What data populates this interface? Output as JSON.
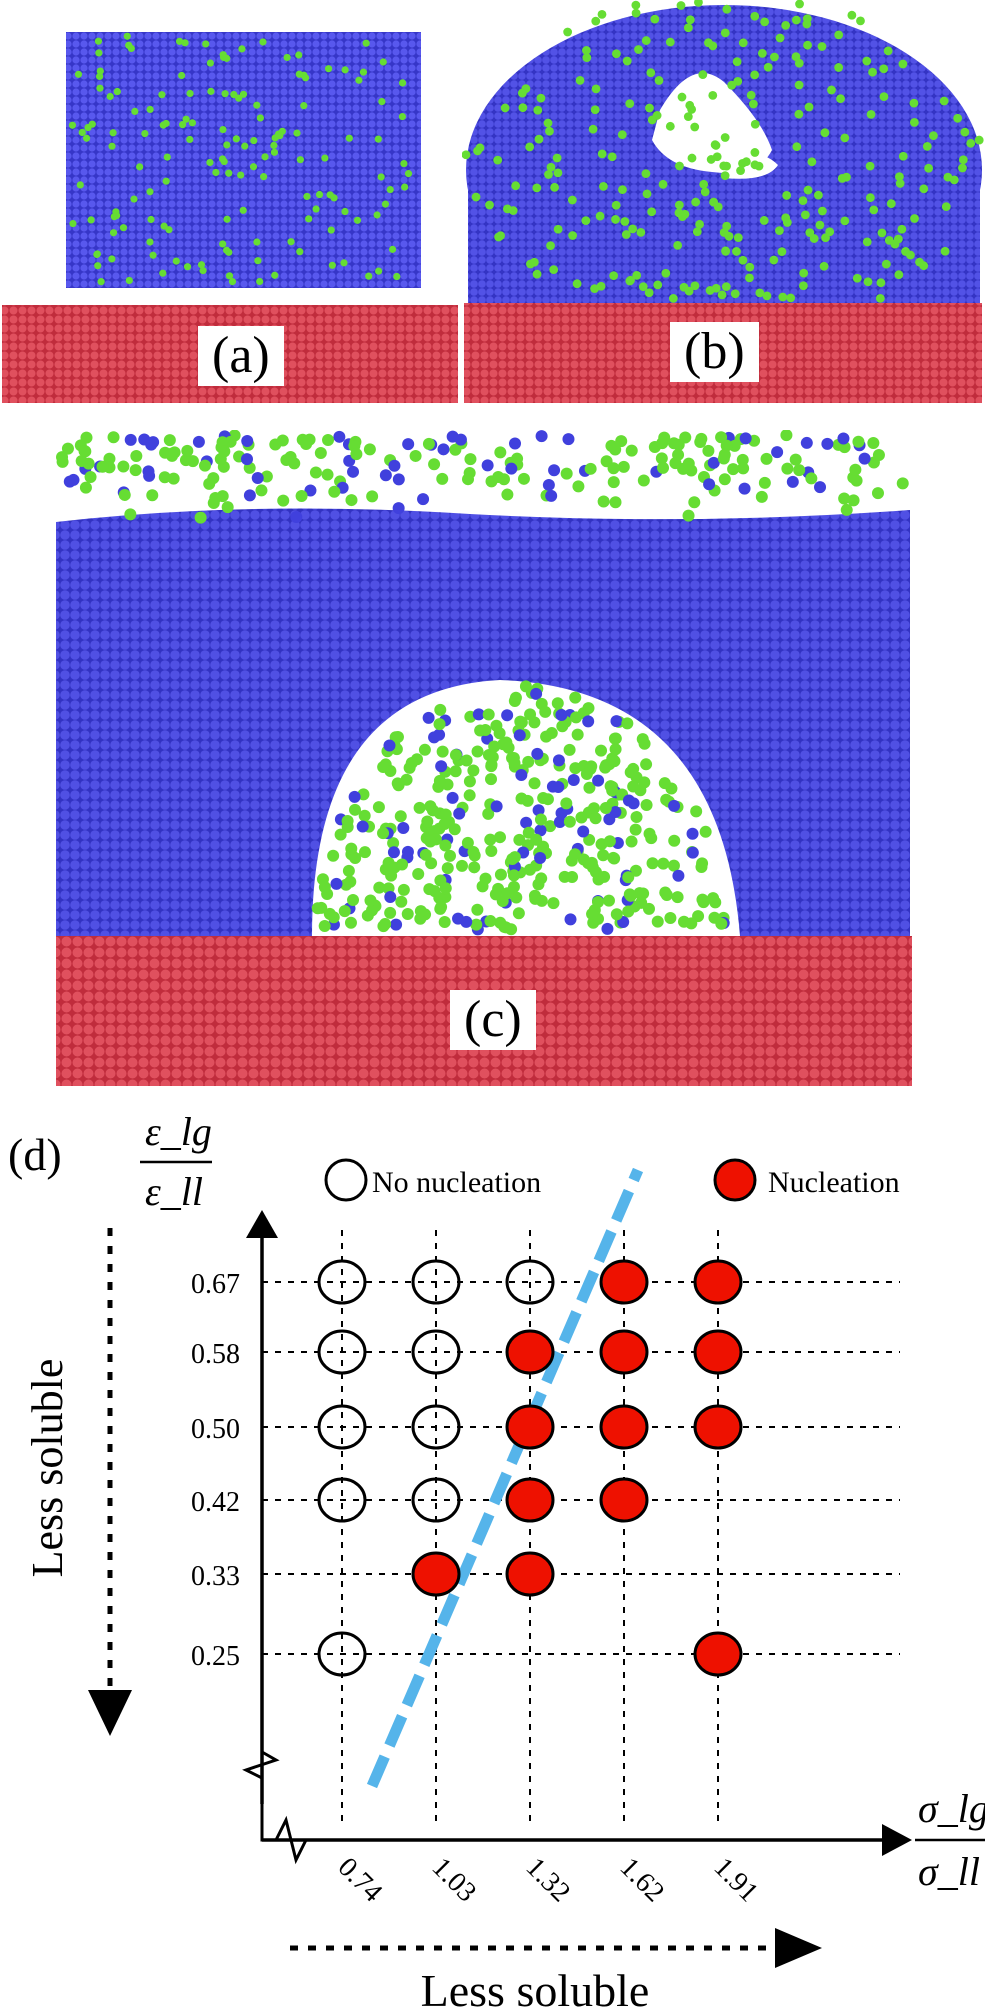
{
  "panels": {
    "a": {
      "label": "(a)"
    },
    "b": {
      "label": "(b)"
    },
    "c": {
      "label": "(c)"
    },
    "d": {
      "label": "(d)"
    }
  },
  "colors": {
    "solvent": "#4040dd",
    "gas": "#66dd33",
    "substrate": "#d03848",
    "nucleation": "#ee1100",
    "boundary": "#55b4ea"
  },
  "chart_data": {
    "type": "scatter",
    "x_label_num": "σ_lg",
    "x_label_den": "σ_ll",
    "y_label_num": "ε_lg",
    "y_label_den": "ε_ll",
    "x_ticks": [
      "0.74",
      "1.03",
      "1.32",
      "1.62",
      "1.91"
    ],
    "y_ticks": [
      "0.67",
      "0.58",
      "0.50",
      "0.42",
      "0.33",
      "0.25"
    ],
    "legend": {
      "no_nucleation": "No nucleation",
      "nucleation": "Nucleation"
    },
    "arrow_left_label": "Less soluble",
    "arrow_bottom_label": "Less soluble",
    "points": [
      {
        "x": "0.74",
        "y": "0.67",
        "state": "none"
      },
      {
        "x": "1.03",
        "y": "0.67",
        "state": "none"
      },
      {
        "x": "1.32",
        "y": "0.67",
        "state": "none"
      },
      {
        "x": "1.62",
        "y": "0.67",
        "state": "nucleation"
      },
      {
        "x": "1.91",
        "y": "0.67",
        "state": "nucleation"
      },
      {
        "x": "0.74",
        "y": "0.58",
        "state": "none"
      },
      {
        "x": "1.03",
        "y": "0.58",
        "state": "none"
      },
      {
        "x": "1.32",
        "y": "0.58",
        "state": "nucleation"
      },
      {
        "x": "1.62",
        "y": "0.58",
        "state": "nucleation"
      },
      {
        "x": "1.91",
        "y": "0.58",
        "state": "nucleation"
      },
      {
        "x": "0.74",
        "y": "0.50",
        "state": "none"
      },
      {
        "x": "1.03",
        "y": "0.50",
        "state": "none"
      },
      {
        "x": "1.32",
        "y": "0.50",
        "state": "nucleation"
      },
      {
        "x": "1.62",
        "y": "0.50",
        "state": "nucleation"
      },
      {
        "x": "1.91",
        "y": "0.50",
        "state": "nucleation"
      },
      {
        "x": "0.74",
        "y": "0.42",
        "state": "none"
      },
      {
        "x": "1.03",
        "y": "0.42",
        "state": "none"
      },
      {
        "x": "1.32",
        "y": "0.42",
        "state": "nucleation"
      },
      {
        "x": "1.62",
        "y": "0.42",
        "state": "nucleation"
      },
      {
        "x": "1.03",
        "y": "0.33",
        "state": "nucleation"
      },
      {
        "x": "1.32",
        "y": "0.33",
        "state": "nucleation"
      },
      {
        "x": "0.74",
        "y": "0.25",
        "state": "none"
      },
      {
        "x": "1.91",
        "y": "0.25",
        "state": "nucleation"
      }
    ]
  }
}
